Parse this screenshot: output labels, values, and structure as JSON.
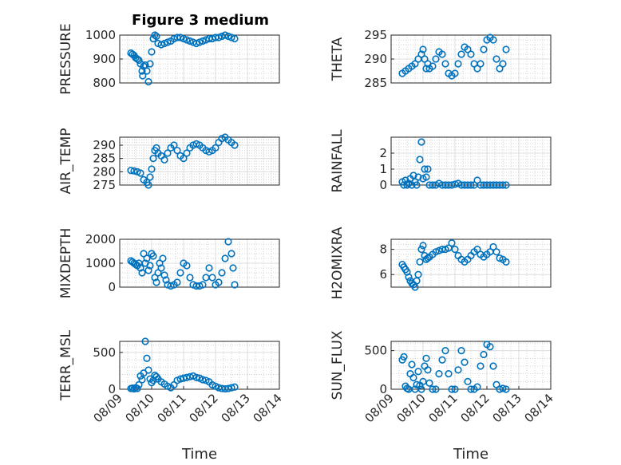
{
  "title": "Figure 3 medium",
  "chart_data": [
    {
      "type": "scatter",
      "ylabel": "PRESSURE",
      "ylim": [
        800,
        1000
      ],
      "yticks": [
        "800",
        "900",
        "1000"
      ],
      "xlim": [
        0,
        5
      ],
      "xtick_labels": [],
      "grid": "on",
      "x": [
        0.35,
        0.4,
        0.45,
        0.5,
        0.55,
        0.6,
        0.65,
        0.7,
        0.72,
        0.75,
        0.8,
        0.85,
        0.9,
        0.95,
        1.0,
        1.05,
        1.1,
        1.15,
        1.2,
        1.3,
        1.4,
        1.5,
        1.6,
        1.7,
        1.8,
        1.9,
        2.0,
        2.1,
        2.2,
        2.3,
        2.4,
        2.5,
        2.6,
        2.7,
        2.8,
        2.9,
        3.0,
        3.1,
        3.2,
        3.3,
        3.4,
        3.5,
        3.6
      ],
      "y": [
        925,
        920,
        915,
        905,
        900,
        895,
        880,
        850,
        830,
        870,
        875,
        850,
        805,
        880,
        930,
        985,
        1000,
        995,
        965,
        960,
        965,
        970,
        975,
        985,
        990,
        990,
        985,
        980,
        975,
        970,
        965,
        970,
        975,
        980,
        985,
        985,
        990,
        990,
        995,
        1000,
        995,
        990,
        985
      ]
    },
    {
      "type": "scatter",
      "ylabel": "THETA",
      "ylim": [
        285,
        295
      ],
      "yticks": [
        "285",
        "290",
        "295"
      ],
      "xlim": [
        0,
        5
      ],
      "xtick_labels": [],
      "grid": "on",
      "x": [
        0.35,
        0.45,
        0.55,
        0.65,
        0.75,
        0.85,
        0.95,
        1.0,
        1.05,
        1.1,
        1.15,
        1.2,
        1.3,
        1.4,
        1.5,
        1.6,
        1.7,
        1.8,
        1.9,
        2.0,
        2.1,
        2.2,
        2.3,
        2.4,
        2.5,
        2.6,
        2.7,
        2.8,
        2.9,
        3.0,
        3.1,
        3.2,
        3.3,
        3.4,
        3.5,
        3.6
      ],
      "y": [
        287,
        287.5,
        288,
        288.5,
        289,
        290,
        291,
        292,
        290,
        288,
        289,
        288,
        288.5,
        290,
        291.5,
        291,
        289,
        287,
        286.5,
        287,
        289,
        291,
        292.5,
        292,
        291,
        289,
        288,
        289,
        292,
        294,
        294.5,
        294,
        290,
        288,
        289,
        292
      ]
    },
    {
      "type": "scatter",
      "ylabel": "AIR_TEMP",
      "ylim": [
        275,
        293
      ],
      "yticks": [
        "275",
        "280",
        "285",
        "290"
      ],
      "xlim": [
        0,
        5
      ],
      "xtick_labels": [],
      "grid": "on",
      "x": [
        0.35,
        0.45,
        0.55,
        0.65,
        0.75,
        0.85,
        0.9,
        0.95,
        1.0,
        1.05,
        1.1,
        1.15,
        1.2,
        1.3,
        1.4,
        1.5,
        1.6,
        1.7,
        1.8,
        1.9,
        2.0,
        2.1,
        2.2,
        2.3,
        2.4,
        2.5,
        2.6,
        2.7,
        2.8,
        2.9,
        3.0,
        3.1,
        3.2,
        3.3,
        3.4,
        3.5,
        3.6
      ],
      "y": [
        280.5,
        280.3,
        280,
        279.5,
        277,
        276,
        275,
        278,
        281,
        285,
        288,
        289,
        287,
        286,
        284.5,
        287,
        289,
        290,
        288,
        286,
        285,
        287,
        289,
        290,
        290.5,
        290,
        289,
        288,
        287.5,
        288,
        289,
        291,
        292.5,
        293,
        292,
        291,
        290
      ]
    },
    {
      "type": "scatter",
      "ylabel": "RAINFALL",
      "ylim": [
        0,
        3
      ],
      "yticks": [
        "0",
        "1",
        "2"
      ],
      "xlim": [
        0,
        5
      ],
      "xtick_labels": [],
      "grid": "on",
      "x": [
        0.35,
        0.4,
        0.45,
        0.5,
        0.55,
        0.6,
        0.65,
        0.7,
        0.75,
        0.8,
        0.85,
        0.9,
        0.95,
        1.0,
        1.05,
        1.1,
        1.15,
        1.2,
        1.3,
        1.4,
        1.5,
        1.6,
        1.7,
        1.8,
        1.9,
        2.0,
        2.1,
        2.2,
        2.3,
        2.4,
        2.5,
        2.6,
        2.7,
        2.8,
        2.9,
        3.0,
        3.1,
        3.2,
        3.3,
        3.4,
        3.5,
        3.6
      ],
      "y": [
        0.2,
        0,
        0.3,
        0,
        0.1,
        0.4,
        0,
        0.6,
        0.2,
        0,
        0.5,
        1.6,
        2.7,
        0.4,
        1.0,
        0.5,
        1.0,
        0,
        0,
        0,
        0.1,
        0,
        0,
        0,
        0,
        0.05,
        0.1,
        0,
        0,
        0,
        0,
        0,
        0.3,
        0,
        0,
        0,
        0,
        0,
        0,
        0,
        0,
        0
      ]
    },
    {
      "type": "scatter",
      "ylabel": "MIXDEPTH",
      "ylim": [
        0,
        2000
      ],
      "yticks": [
        "0",
        "1000",
        "2000"
      ],
      "xlim": [
        0,
        5
      ],
      "xtick_labels": [],
      "grid": "on",
      "x": [
        0.35,
        0.4,
        0.45,
        0.5,
        0.55,
        0.6,
        0.65,
        0.7,
        0.75,
        0.8,
        0.85,
        0.9,
        0.95,
        1.0,
        1.05,
        1.1,
        1.15,
        1.2,
        1.25,
        1.3,
        1.35,
        1.4,
        1.45,
        1.5,
        1.6,
        1.7,
        1.8,
        1.9,
        2.0,
        2.1,
        2.2,
        2.3,
        2.4,
        2.5,
        2.6,
        2.7,
        2.8,
        2.9,
        3.0,
        3.1,
        3.2,
        3.3,
        3.4,
        3.5,
        3.55,
        3.6
      ],
      "y": [
        1100,
        1050,
        1000,
        950,
        900,
        1000,
        800,
        600,
        1400,
        1000,
        1200,
        700,
        900,
        1400,
        1300,
        400,
        200,
        600,
        1000,
        800,
        1200,
        500,
        300,
        100,
        50,
        100,
        200,
        600,
        1000,
        900,
        400,
        100,
        50,
        50,
        100,
        400,
        800,
        400,
        100,
        200,
        600,
        1200,
        1900,
        1400,
        800,
        100
      ]
    },
    {
      "type": "scatter",
      "ylabel": "H2OMIXRA",
      "ylim": [
        5,
        8.8
      ],
      "yticks": [
        "6",
        "8"
      ],
      "xlim": [
        0,
        5
      ],
      "xtick_labels": [],
      "grid": "on",
      "x": [
        0.35,
        0.4,
        0.45,
        0.5,
        0.55,
        0.6,
        0.65,
        0.7,
        0.75,
        0.8,
        0.85,
        0.9,
        0.95,
        1.0,
        1.05,
        1.1,
        1.15,
        1.2,
        1.3,
        1.4,
        1.5,
        1.6,
        1.7,
        1.8,
        1.9,
        2.0,
        2.1,
        2.2,
        2.3,
        2.4,
        2.5,
        2.6,
        2.7,
        2.8,
        2.9,
        3.0,
        3.1,
        3.2,
        3.3,
        3.4,
        3.5,
        3.6
      ],
      "y": [
        6.8,
        6.6,
        6.4,
        6.2,
        5.8,
        5.5,
        5.3,
        5.2,
        5.0,
        5.5,
        6.0,
        7.0,
        8.0,
        8.3,
        7.5,
        7.2,
        7.3,
        7.4,
        7.6,
        7.8,
        7.9,
        8.0,
        8.0,
        8.1,
        8.5,
        8.0,
        7.5,
        7.2,
        7.0,
        7.2,
        7.5,
        7.8,
        8.0,
        7.6,
        7.4,
        7.6,
        7.8,
        8.2,
        7.8,
        7.3,
        7.2,
        7.0
      ]
    },
    {
      "type": "scatter",
      "ylabel": "TERR_MSL",
      "ylim": [
        0,
        650
      ],
      "yticks": [
        "0",
        "500"
      ],
      "xlim": [
        0,
        5
      ],
      "xtick_labels": [
        "08/09",
        "08/10",
        "08/11",
        "08/12",
        "08/13",
        "08/14"
      ],
      "xlabel": "Time",
      "grid": "on",
      "x": [
        0.35,
        0.4,
        0.45,
        0.5,
        0.55,
        0.6,
        0.65,
        0.7,
        0.75,
        0.8,
        0.85,
        0.9,
        0.95,
        1.0,
        1.05,
        1.1,
        1.15,
        1.2,
        1.3,
        1.4,
        1.5,
        1.6,
        1.7,
        1.8,
        1.9,
        2.0,
        2.1,
        2.2,
        2.3,
        2.4,
        2.5,
        2.6,
        2.7,
        2.8,
        2.9,
        3.0,
        3.1,
        3.2,
        3.3,
        3.4,
        3.5,
        3.6
      ],
      "y": [
        10,
        15,
        5,
        20,
        10,
        60,
        180,
        130,
        220,
        650,
        420,
        260,
        140,
        90,
        120,
        190,
        170,
        140,
        100,
        70,
        40,
        20,
        60,
        120,
        140,
        150,
        160,
        170,
        180,
        160,
        150,
        130,
        120,
        100,
        60,
        40,
        20,
        10,
        5,
        10,
        20,
        30
      ]
    },
    {
      "type": "scatter",
      "ylabel": "SUN_FLUX",
      "ylim": [
        0,
        620
      ],
      "yticks": [
        "0",
        "500"
      ],
      "xlim": [
        0,
        5
      ],
      "xtick_labels": [
        "08/09",
        "08/10",
        "08/11",
        "08/12",
        "08/13",
        "08/14"
      ],
      "xlabel": "Time",
      "grid": "on",
      "x": [
        0.35,
        0.4,
        0.45,
        0.5,
        0.55,
        0.6,
        0.65,
        0.7,
        0.75,
        0.8,
        0.85,
        0.9,
        0.95,
        1.0,
        1.05,
        1.1,
        1.15,
        1.2,
        1.3,
        1.4,
        1.5,
        1.6,
        1.7,
        1.8,
        1.9,
        2.0,
        2.1,
        2.2,
        2.3,
        2.4,
        2.5,
        2.6,
        2.7,
        2.8,
        2.9,
        3.0,
        3.1,
        3.2,
        3.3,
        3.4,
        3.5,
        3.6
      ],
      "y": [
        380,
        420,
        40,
        10,
        0,
        200,
        320,
        150,
        0,
        60,
        230,
        50,
        0,
        100,
        300,
        400,
        250,
        80,
        0,
        0,
        200,
        380,
        500,
        200,
        0,
        0,
        250,
        500,
        350,
        100,
        0,
        0,
        30,
        300,
        450,
        580,
        550,
        300,
        60,
        0,
        10,
        0
      ]
    }
  ]
}
